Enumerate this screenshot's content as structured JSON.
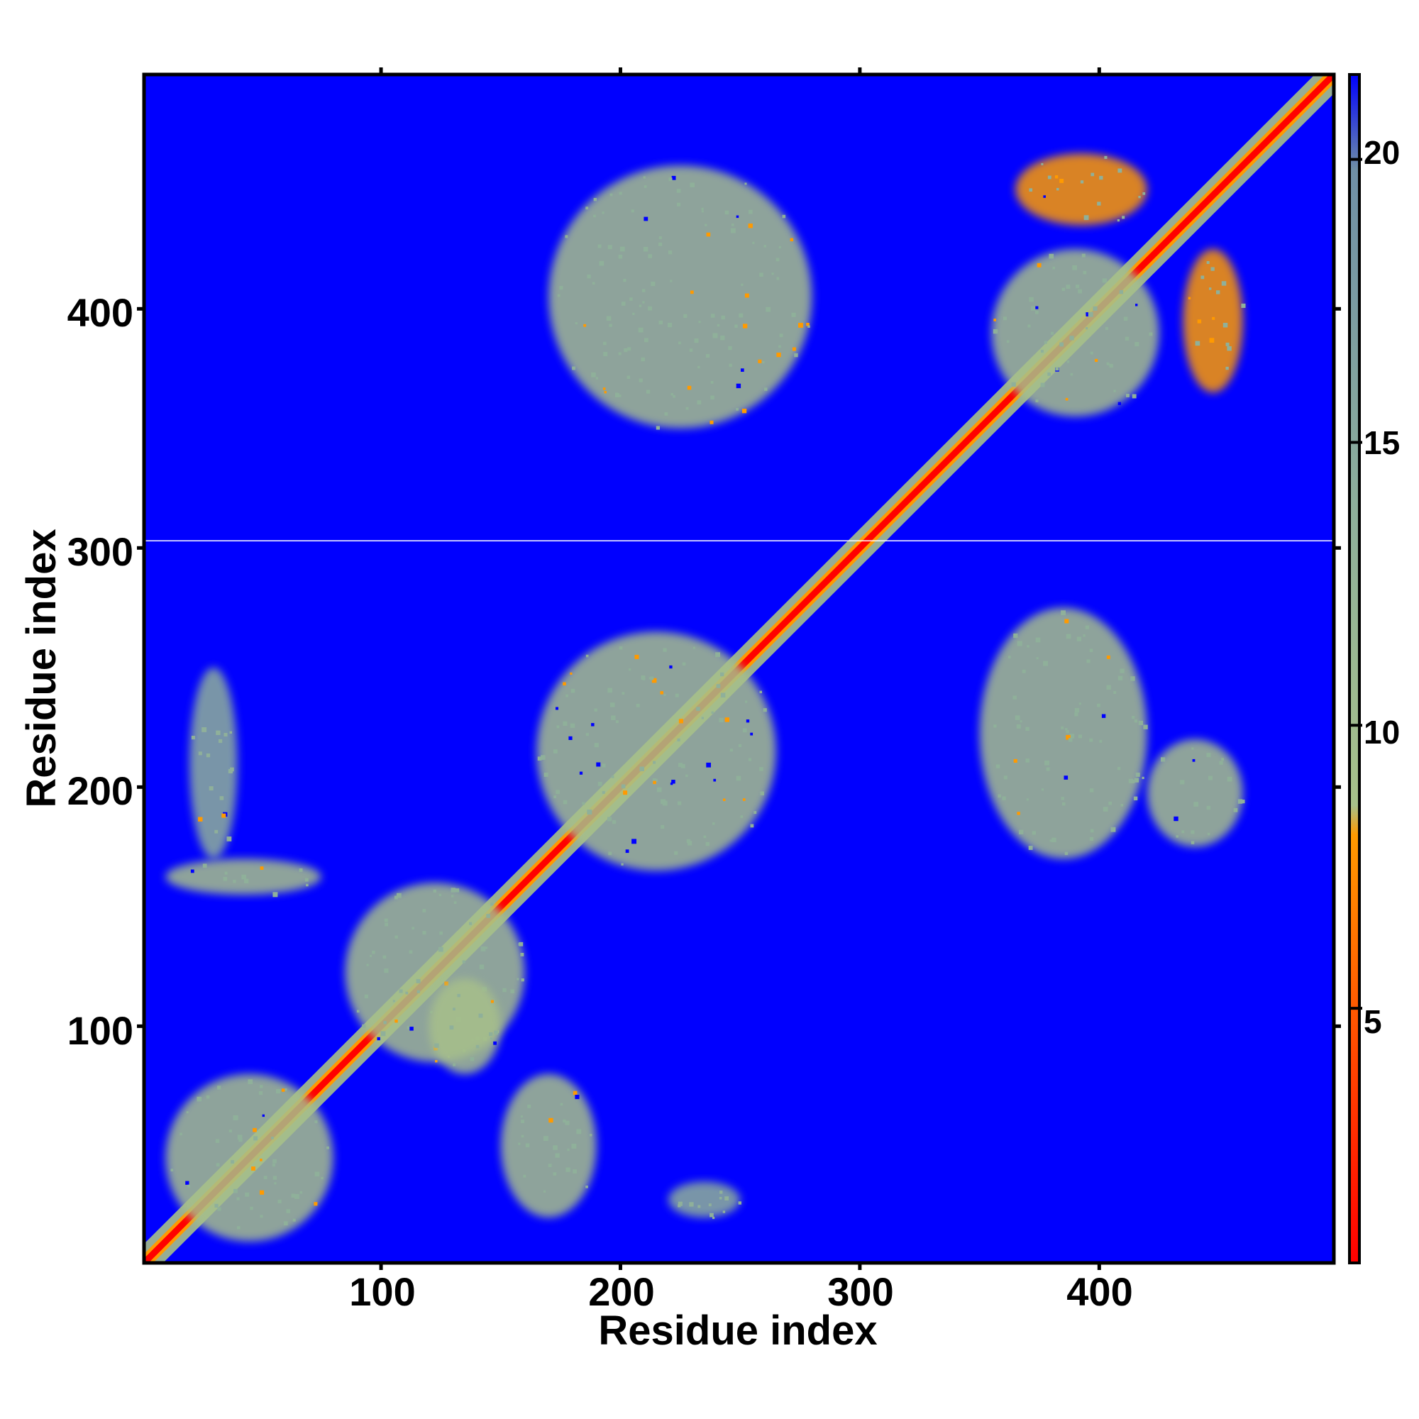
{
  "chart_data": {
    "type": "heatmap",
    "title": "",
    "xlabel": "Residue index",
    "ylabel": "Residue index",
    "xlim": [
      1,
      498
    ],
    "ylim": [
      1,
      498
    ],
    "x_ticks": [
      100,
      200,
      300,
      400
    ],
    "y_ticks": [
      100,
      200,
      300,
      400
    ],
    "x_tick_labels": [
      "100",
      "200",
      "300",
      "400"
    ],
    "y_tick_labels": [
      "100",
      "200",
      "300",
      "400"
    ],
    "colorbar": {
      "range": [
        0.5,
        21.5
      ],
      "ticks": [
        5,
        10,
        15,
        20
      ],
      "tick_labels": [
        "5",
        "10",
        "15",
        "20"
      ],
      "colors": {
        "low": "#ff0000",
        "mid_low": "#ff9a00",
        "mid": "#a7c08a",
        "high": "#6f8fa6",
        "max": "#0000ff"
      }
    },
    "background_color": "#0000ff",
    "grid": false,
    "missing_row_residue": 303,
    "contact_regions": [
      {
        "x": [
          1,
          498
        ],
        "y": [
          1,
          498
        ],
        "kind": "diagonal",
        "value": 2
      },
      {
        "x": [
          10,
          80
        ],
        "y": [
          10,
          80
        ],
        "kind": "block",
        "value": 9
      },
      {
        "x": [
          85,
          160
        ],
        "y": [
          85,
          160
        ],
        "kind": "block",
        "value": 11
      },
      {
        "x": [
          165,
          265
        ],
        "y": [
          165,
          265
        ],
        "kind": "block",
        "value": 10
      },
      {
        "x": [
          355,
          425
        ],
        "y": [
          355,
          425
        ],
        "kind": "block",
        "value": 9
      },
      {
        "x": [
          435,
          460
        ],
        "y": [
          365,
          425
        ],
        "kind": "stripe",
        "value": 8
      },
      {
        "x": [
          365,
          420
        ],
        "y": [
          435,
          465
        ],
        "kind": "stripe",
        "value": 8
      },
      {
        "x": [
          10,
          75
        ],
        "y": [
          155,
          170
        ],
        "kind": "patch",
        "value": 11
      },
      {
        "x": [
          20,
          40
        ],
        "y": [
          170,
          250
        ],
        "kind": "patch",
        "value": 13
      },
      {
        "x": [
          150,
          190
        ],
        "y": [
          20,
          80
        ],
        "kind": "patch",
        "value": 10
      },
      {
        "x": [
          220,
          250
        ],
        "y": [
          20,
          35
        ],
        "kind": "patch",
        "value": 13
      },
      {
        "x": [
          120,
          150
        ],
        "y": [
          80,
          120
        ],
        "kind": "patch",
        "value": 11
      },
      {
        "x": [
          170,
          280
        ],
        "y": [
          350,
          460
        ],
        "kind": "patch",
        "value": 10
      },
      {
        "x": [
          350,
          420
        ],
        "y": [
          170,
          275
        ],
        "kind": "patch",
        "value": 10
      },
      {
        "x": [
          420,
          460
        ],
        "y": [
          175,
          220
        ],
        "kind": "patch",
        "value": 11
      }
    ]
  }
}
